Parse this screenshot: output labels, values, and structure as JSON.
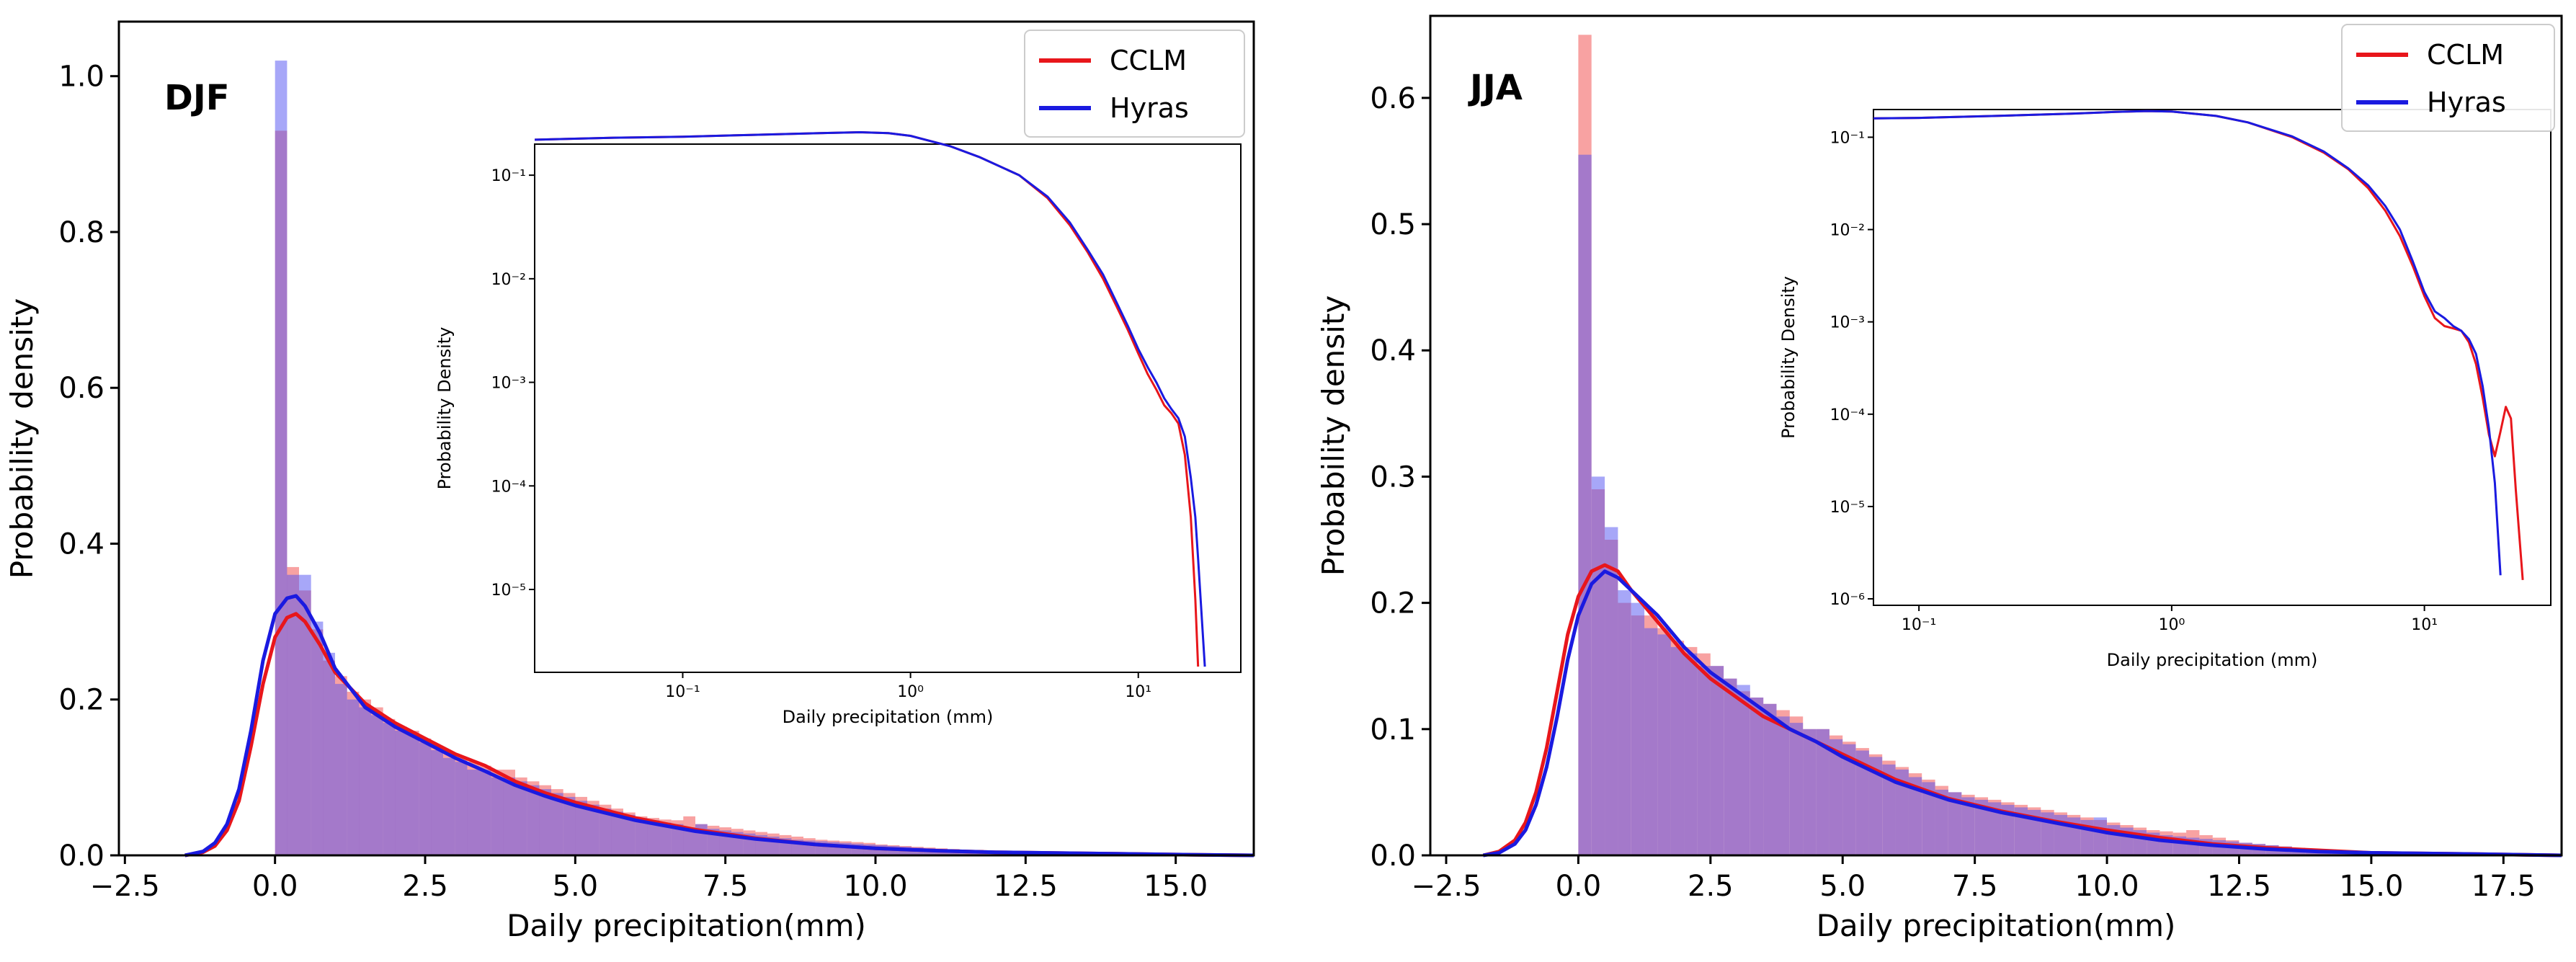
{
  "chart_data": [
    {
      "type": "histogram+kde",
      "panel_label": "DJF",
      "xlabel": "Daily precipitation(mm)",
      "ylabel": "Probability density",
      "xlim": [
        -2.6,
        16.3
      ],
      "ylim": [
        0,
        1.07
      ],
      "xticks": [
        -2.5,
        0.0,
        2.5,
        5.0,
        7.5,
        10.0,
        12.5,
        15.0
      ],
      "xtick_labels": [
        "−2.5",
        "0.0",
        "2.5",
        "5.0",
        "7.5",
        "10.0",
        "12.5",
        "15.0"
      ],
      "yticks": [
        0.0,
        0.2,
        0.4,
        0.6,
        0.8,
        1.0
      ],
      "ytick_labels": [
        "0.0",
        "0.2",
        "0.4",
        "0.6",
        "0.8",
        "1.0"
      ],
      "legend": {
        "position": "top-right",
        "entries": [
          {
            "name": "CCLM",
            "color": "#e8161b"
          },
          {
            "name": "Hyras",
            "color": "#1a1ae0"
          }
        ]
      },
      "hist_bin_width": 0.2,
      "hist_start": 0.0,
      "hist": {
        "CCLM": [
          0.93,
          0.37,
          0.34,
          0.29,
          0.25,
          0.23,
          0.21,
          0.2,
          0.19,
          0.175,
          0.165,
          0.16,
          0.15,
          0.14,
          0.13,
          0.125,
          0.12,
          0.115,
          0.11,
          0.11,
          0.1,
          0.095,
          0.09,
          0.085,
          0.08,
          0.075,
          0.07,
          0.065,
          0.06,
          0.055,
          0.05,
          0.048,
          0.046,
          0.045,
          0.05,
          0.04,
          0.038,
          0.036,
          0.034,
          0.032,
          0.03,
          0.028,
          0.026,
          0.024,
          0.022,
          0.02,
          0.019,
          0.018,
          0.017,
          0.016,
          0.014,
          0.013,
          0.012,
          0.011,
          0.01,
          0.009,
          0.008,
          0.007,
          0.007,
          0.006,
          0.005,
          0.005,
          0.004,
          0.004,
          0.003,
          0.003,
          0.002,
          0.002,
          0.002,
          0.001,
          0.001
        ],
        "Hyras": [
          1.02,
          0.36,
          0.36,
          0.3,
          0.26,
          0.22,
          0.2,
          0.19,
          0.18,
          0.17,
          0.16,
          0.155,
          0.145,
          0.135,
          0.125,
          0.12,
          0.11,
          0.11,
          0.1,
          0.1,
          0.095,
          0.09,
          0.085,
          0.08,
          0.075,
          0.07,
          0.065,
          0.06,
          0.056,
          0.052,
          0.048,
          0.045,
          0.042,
          0.04,
          0.036,
          0.04,
          0.034,
          0.032,
          0.03,
          0.028,
          0.026,
          0.024,
          0.022,
          0.02,
          0.019,
          0.018,
          0.017,
          0.016,
          0.015,
          0.014,
          0.013,
          0.012,
          0.011,
          0.01,
          0.009,
          0.008,
          0.007,
          0.006,
          0.006,
          0.005,
          0.005,
          0.004,
          0.004,
          0.003,
          0.003,
          0.002,
          0.002,
          0.002,
          0.001,
          0.001,
          0.001
        ]
      },
      "kde": {
        "x": [
          -1.5,
          -1.2,
          -1.0,
          -0.8,
          -0.6,
          -0.4,
          -0.2,
          0.0,
          0.2,
          0.35,
          0.5,
          0.75,
          1.0,
          1.5,
          2.0,
          2.5,
          3.0,
          3.5,
          4.0,
          4.5,
          5.0,
          6.0,
          7.0,
          8.0,
          9.0,
          10.0,
          11.0,
          12.0,
          13.0,
          14.0,
          15.0,
          16.3
        ],
        "CCLM": [
          0.0,
          0.004,
          0.012,
          0.032,
          0.07,
          0.14,
          0.22,
          0.28,
          0.305,
          0.31,
          0.3,
          0.27,
          0.235,
          0.195,
          0.17,
          0.15,
          0.13,
          0.115,
          0.095,
          0.08,
          0.068,
          0.048,
          0.033,
          0.022,
          0.014,
          0.009,
          0.006,
          0.004,
          0.003,
          0.002,
          0.001,
          0.0
        ],
        "Hyras": [
          0.0,
          0.005,
          0.016,
          0.04,
          0.085,
          0.16,
          0.25,
          0.31,
          0.33,
          0.333,
          0.32,
          0.285,
          0.24,
          0.19,
          0.165,
          0.145,
          0.125,
          0.108,
          0.09,
          0.076,
          0.064,
          0.045,
          0.031,
          0.021,
          0.014,
          0.009,
          0.006,
          0.004,
          0.003,
          0.002,
          0.001,
          0.0
        ]
      },
      "inset": {
        "xlabel": "Daily precipitation (mm)",
        "ylabel": "Probability Density",
        "xscale": "log",
        "yscale": "log",
        "xlim_log10": [
          -1.65,
          1.45
        ],
        "ylim_log10": [
          -5.8,
          -0.7
        ],
        "xtick_exponents": [
          -1,
          0,
          1
        ],
        "xtick_labels": [
          "10⁻¹",
          "10⁰",
          "10¹"
        ],
        "ytick_exponents": [
          -1,
          -2,
          -3,
          -4,
          -5
        ],
        "ytick_labels": [
          "10⁻¹",
          "10⁻²",
          "10⁻³",
          "10⁻⁴",
          "10⁻⁵"
        ],
        "x": [
          0.0224,
          0.05,
          0.1,
          0.2,
          0.4,
          0.6,
          0.8,
          1.0,
          1.5,
          2.0,
          3.0,
          4.0,
          5.0,
          6.0,
          7.0,
          8.0,
          9.0,
          10.0,
          11.0,
          12.0,
          13.0,
          14.0,
          15.0,
          16.0,
          17.0,
          17.8,
          18.3,
          19.6
        ],
        "CCLM": [
          0.22,
          0.23,
          0.235,
          0.245,
          0.255,
          0.26,
          0.255,
          0.24,
          0.19,
          0.15,
          0.1,
          0.06,
          0.033,
          0.018,
          0.01,
          0.0055,
          0.0032,
          0.0019,
          0.0012,
          0.00085,
          0.0006,
          0.0005,
          0.0004,
          0.0002,
          5e-05,
          8e-06,
          1.8e-06,
          null
        ],
        "Hyras": [
          0.22,
          0.23,
          0.235,
          0.245,
          0.255,
          0.26,
          0.255,
          0.24,
          0.19,
          0.15,
          0.1,
          0.062,
          0.035,
          0.019,
          0.011,
          0.006,
          0.0035,
          0.0021,
          0.0014,
          0.001,
          0.0007,
          0.00055,
          0.00045,
          0.0003,
          0.00012,
          5e-05,
          2e-05,
          1.8e-06
        ]
      }
    },
    {
      "type": "histogram+kde",
      "panel_label": "JJA",
      "xlabel": "Daily precipitation(mm)",
      "ylabel": "Probability density",
      "xlim": [
        -2.8,
        18.6
      ],
      "ylim": [
        0,
        0.665
      ],
      "xticks": [
        -2.5,
        0.0,
        2.5,
        5.0,
        7.5,
        10.0,
        12.5,
        15.0,
        17.5
      ],
      "xtick_labels": [
        "−2.5",
        "0.0",
        "2.5",
        "5.0",
        "7.5",
        "10.0",
        "12.5",
        "15.0",
        "17.5"
      ],
      "yticks": [
        0.0,
        0.1,
        0.2,
        0.3,
        0.4,
        0.5,
        0.6
      ],
      "ytick_labels": [
        "0.0",
        "0.1",
        "0.2",
        "0.3",
        "0.4",
        "0.5",
        "0.6"
      ],
      "legend": {
        "position": "top-right",
        "entries": [
          {
            "name": "CCLM",
            "color": "#e8161b"
          },
          {
            "name": "Hyras",
            "color": "#1a1ae0"
          }
        ]
      },
      "hist_bin_width": 0.25,
      "hist_start": 0.0,
      "hist": {
        "CCLM": [
          0.65,
          0.29,
          0.25,
          0.2,
          0.19,
          0.19,
          0.18,
          0.17,
          0.165,
          0.16,
          0.15,
          0.14,
          0.13,
          0.125,
          0.12,
          0.115,
          0.11,
          0.1,
          0.1,
          0.095,
          0.09,
          0.085,
          0.08,
          0.075,
          0.07,
          0.065,
          0.06,
          0.055,
          0.05,
          0.048,
          0.046,
          0.044,
          0.042,
          0.04,
          0.038,
          0.036,
          0.034,
          0.032,
          0.03,
          0.028,
          0.026,
          0.024,
          0.022,
          0.02,
          0.019,
          0.018,
          0.02,
          0.016,
          0.014,
          0.012,
          0.01,
          0.009,
          0.008,
          0.007,
          0.006,
          0.005,
          0.004,
          0.004,
          0.003,
          0.003
        ],
        "Hyras": [
          0.555,
          0.3,
          0.26,
          0.21,
          0.2,
          0.18,
          0.175,
          0.165,
          0.16,
          0.15,
          0.15,
          0.14,
          0.135,
          0.125,
          0.12,
          0.11,
          0.105,
          0.1,
          0.1,
          0.092,
          0.088,
          0.083,
          0.078,
          0.072,
          0.068,
          0.062,
          0.058,
          0.052,
          0.05,
          0.046,
          0.044,
          0.042,
          0.04,
          0.038,
          0.036,
          0.034,
          0.032,
          0.03,
          0.028,
          0.03,
          0.024,
          0.022,
          0.02,
          0.018,
          0.016,
          0.015,
          0.014,
          0.013,
          0.012,
          0.011,
          0.01,
          0.009,
          0.008,
          0.007,
          0.006,
          0.005,
          0.004,
          0.004,
          0.003,
          0.003
        ]
      },
      "kde": {
        "x": [
          -1.8,
          -1.5,
          -1.2,
          -1.0,
          -0.8,
          -0.6,
          -0.4,
          -0.2,
          0.0,
          0.25,
          0.5,
          0.75,
          1.0,
          1.5,
          2.0,
          2.5,
          3.0,
          3.5,
          4.0,
          4.5,
          5.0,
          6.0,
          7.0,
          8.0,
          9.0,
          10.0,
          11.0,
          12.0,
          13.0,
          14.0,
          15.0,
          17.0,
          18.6
        ],
        "CCLM": [
          0.0,
          0.003,
          0.012,
          0.026,
          0.05,
          0.085,
          0.13,
          0.175,
          0.205,
          0.225,
          0.23,
          0.225,
          0.21,
          0.185,
          0.16,
          0.14,
          0.125,
          0.11,
          0.1,
          0.09,
          0.08,
          0.06,
          0.045,
          0.035,
          0.027,
          0.02,
          0.014,
          0.009,
          0.006,
          0.004,
          0.002,
          0.001,
          0.0
        ],
        "Hyras": [
          0.0,
          0.002,
          0.009,
          0.02,
          0.04,
          0.07,
          0.11,
          0.155,
          0.19,
          0.215,
          0.225,
          0.22,
          0.21,
          0.19,
          0.165,
          0.145,
          0.13,
          0.115,
          0.1,
          0.09,
          0.078,
          0.058,
          0.044,
          0.034,
          0.026,
          0.018,
          0.012,
          0.008,
          0.005,
          0.003,
          0.002,
          0.001,
          0.0
        ]
      },
      "inset": {
        "xlabel": "Daily precipitation (mm)",
        "ylabel": "Probability Density",
        "xscale": "log",
        "yscale": "log",
        "xlim_log10": [
          -1.18,
          1.5
        ],
        "ylim_log10": [
          -6.07,
          -0.7
        ],
        "xtick_exponents": [
          -1,
          0,
          1
        ],
        "xtick_labels": [
          "10⁻¹",
          "10⁰",
          "10¹"
        ],
        "ytick_exponents": [
          -1,
          -2,
          -3,
          -4,
          -5,
          -6
        ],
        "ytick_labels": [
          "10⁻¹",
          "10⁻²",
          "10⁻³",
          "10⁻⁴",
          "10⁻⁵",
          "10⁻⁶"
        ],
        "x": [
          0.0661,
          0.1,
          0.2,
          0.4,
          0.6,
          0.8,
          1.0,
          1.5,
          2.0,
          3.0,
          4.0,
          5.0,
          6.0,
          7.0,
          8.0,
          9.0,
          10.0,
          11.0,
          12.0,
          13.0,
          14.0,
          15.0,
          16.0,
          17.0,
          18.0,
          19.0,
          20.0,
          21.0,
          22.0,
          23.0,
          24.5
        ],
        "CCLM": [
          0.16,
          0.162,
          0.17,
          0.18,
          0.188,
          0.192,
          0.19,
          0.17,
          0.145,
          0.1,
          0.068,
          0.045,
          0.028,
          0.016,
          0.0085,
          0.004,
          0.0019,
          0.0011,
          0.0009,
          0.00085,
          0.0008,
          0.0006,
          0.00035,
          0.00015,
          6e-05,
          3.5e-05,
          6.5e-05,
          0.00012,
          9e-05,
          1.5e-05,
          1.6e-06
        ],
        "Hyras": [
          0.16,
          0.162,
          0.17,
          0.18,
          0.188,
          0.192,
          0.19,
          0.17,
          0.145,
          0.102,
          0.07,
          0.046,
          0.03,
          0.018,
          0.01,
          0.0045,
          0.0021,
          0.0013,
          0.0011,
          0.0009,
          0.0008,
          0.00065,
          0.00045,
          0.0002,
          7e-05,
          1.8e-05,
          1.8e-06,
          null,
          null,
          null,
          null
        ]
      }
    }
  ]
}
